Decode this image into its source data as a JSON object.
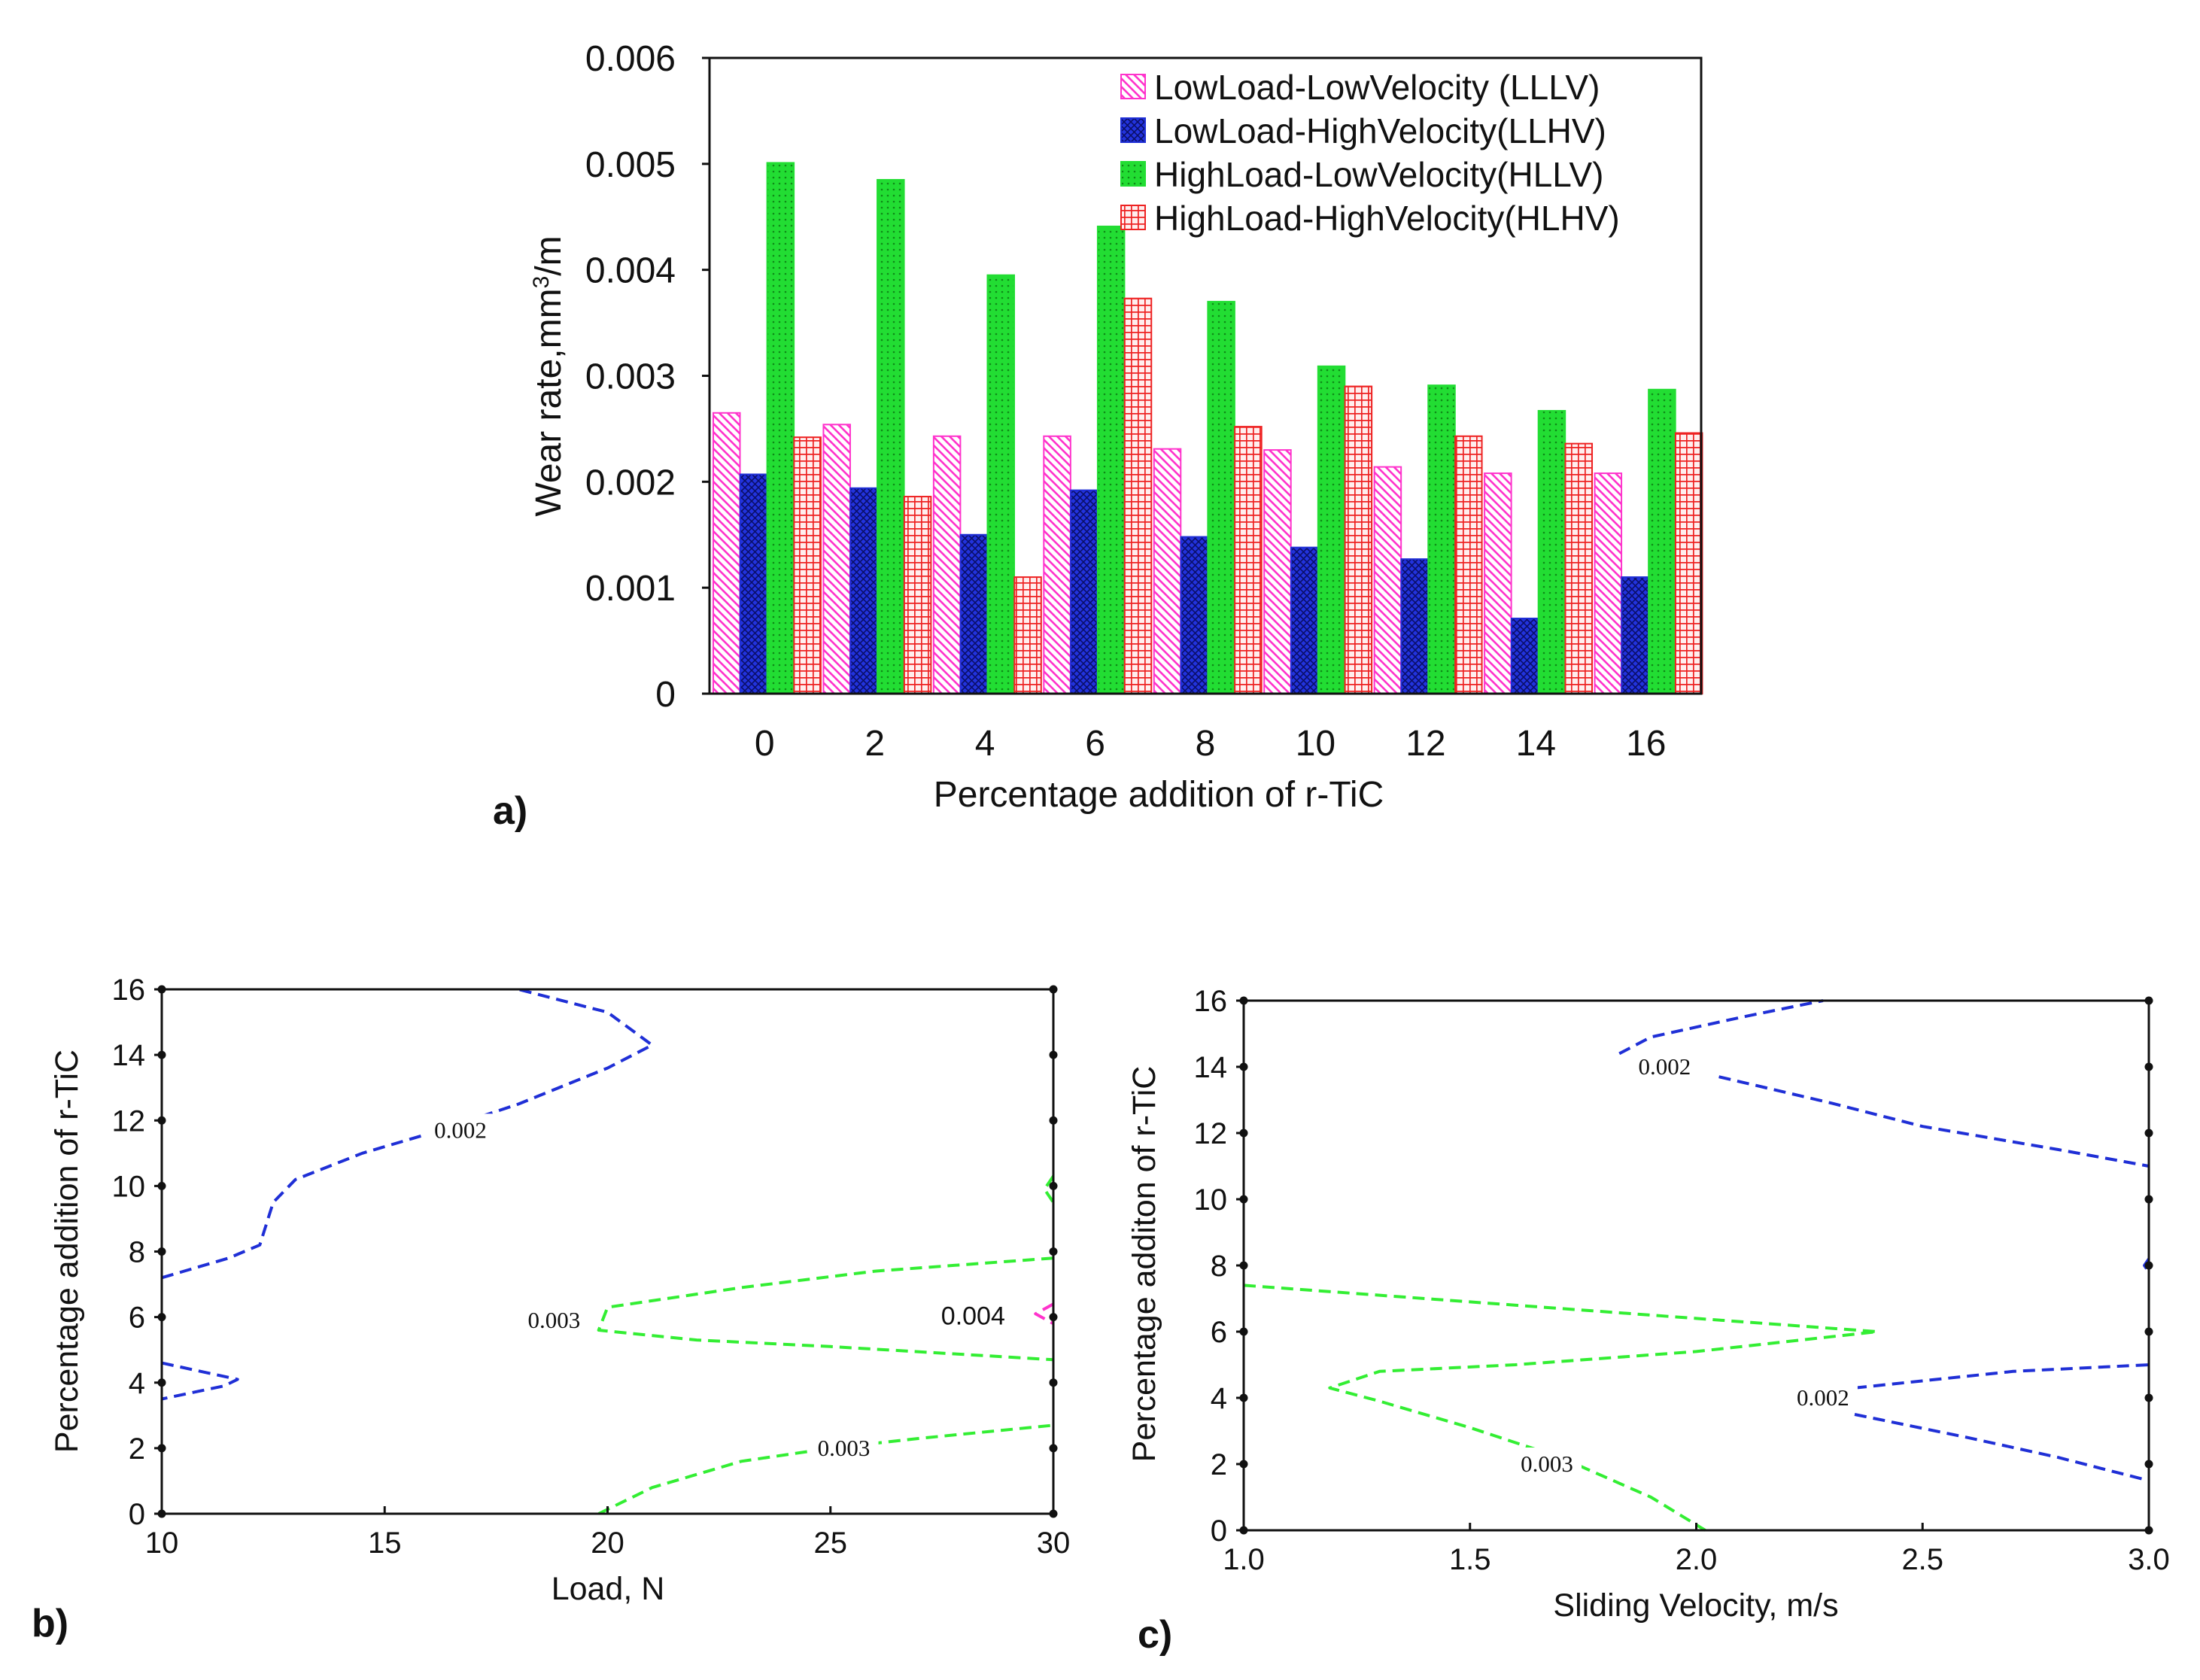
{
  "colors": {
    "lllv": "#ff33cc",
    "llhv": "#1f2fd6",
    "hllv": "#22dd33",
    "hlhv": "#ee2222",
    "contour_blue": "#1f2fd6",
    "contour_green": "#33ee33",
    "contour_magenta": "#ff33cc",
    "axis": "#111111"
  },
  "chart_data": [
    {
      "id": "a",
      "panel_label": "a)",
      "type": "bar",
      "xlabel": "Percentage addition of r-TiC",
      "ylabel_main": "Wear rate,mm",
      "ylabel_sup": "3",
      "ylabel_tail": "/m",
      "categories": [
        "0",
        "2",
        "4",
        "6",
        "8",
        "10",
        "12",
        "14",
        "16"
      ],
      "ylim": [
        0,
        0.006
      ],
      "yticks": [
        "0",
        "0.001",
        "0.002",
        "0.003",
        "0.004",
        "0.005",
        "0.006"
      ],
      "legend_position": "top-right",
      "series": [
        {
          "name": "LowLoad-LowVelocity (LLLV)",
          "color_key": "lllv",
          "pattern": "diag",
          "values": [
            0.00265,
            0.00254,
            0.00243,
            0.00243,
            0.00231,
            0.0023,
            0.00214,
            0.00208,
            0.00208
          ]
        },
        {
          "name": "LowLoad-HighVelocity(LLHV)",
          "color_key": "llhv",
          "pattern": "cross",
          "values": [
            0.00207,
            0.00194,
            0.0015,
            0.00192,
            0.00148,
            0.00138,
            0.00127,
            0.00071,
            0.0011
          ]
        },
        {
          "name": "HighLoad-LowVelocity(HLLV)",
          "color_key": "hllv",
          "pattern": "dots",
          "values": [
            0.00501,
            0.00485,
            0.00395,
            0.00441,
            0.0037,
            0.00309,
            0.00291,
            0.00267,
            0.00287
          ]
        },
        {
          "name": "HighLoad-HighVelocity(HLHV)",
          "color_key": "hlhv",
          "pattern": "grid",
          "values": [
            0.00242,
            0.00186,
            0.0011,
            0.00373,
            0.00252,
            0.0029,
            0.00243,
            0.00236,
            0.00246
          ]
        }
      ]
    },
    {
      "id": "b",
      "panel_label": "b)",
      "type": "contour",
      "xlabel": "Load, N",
      "ylabel": "Percentage addition of r-TiC",
      "xlim": [
        10,
        30
      ],
      "ylim": [
        0,
        16
      ],
      "xticks": [
        "10",
        "15",
        "20",
        "25",
        "30"
      ],
      "yticks": [
        "0",
        "2",
        "4",
        "6",
        "8",
        "10",
        "12",
        "14",
        "16"
      ],
      "contours": [
        {
          "level": "0.002",
          "color_key": "contour_blue",
          "label_at": [
            16.7,
            11.7
          ],
          "points": [
            [
              10,
              7.2
            ],
            [
              11.5,
              7.8
            ],
            [
              12.2,
              8.2
            ],
            [
              12.5,
              9.5
            ],
            [
              13,
              10.2
            ],
            [
              14.5,
              11.0
            ],
            [
              16,
              11.6
            ],
            [
              18,
              12.5
            ],
            [
              20,
              13.6
            ],
            [
              21,
              14.3
            ],
            [
              20,
              15.3
            ],
            [
              18,
              16
            ]
          ]
        },
        {
          "level": "0.002",
          "color_key": "contour_blue",
          "points": [
            [
              10,
              4.6
            ],
            [
              11.7,
              4.1
            ],
            [
              11.4,
              3.9
            ],
            [
              10,
              3.5
            ]
          ]
        },
        {
          "level": "0.003",
          "color_key": "contour_green",
          "label_at": [
            18.8,
            5.9
          ],
          "points": [
            [
              30,
              7.8
            ],
            [
              26,
              7.4
            ],
            [
              23,
              6.9
            ],
            [
              20,
              6.3
            ],
            [
              19.8,
              5.6
            ],
            [
              22,
              5.3
            ],
            [
              25,
              5.1
            ],
            [
              30,
              4.7
            ]
          ]
        },
        {
          "level": "0.003",
          "color_key": "contour_green",
          "label_at": [
            25.3,
            2.0
          ],
          "points": [
            [
              19.8,
              0
            ],
            [
              21,
              0.8
            ],
            [
              23,
              1.6
            ],
            [
              25,
              2.0
            ],
            [
              27,
              2.3
            ],
            [
              30,
              2.7
            ]
          ]
        },
        {
          "level": "",
          "color_key": "contour_green",
          "points": [
            [
              30,
              10.3
            ],
            [
              29.8,
              9.9
            ],
            [
              30,
              9.5
            ]
          ]
        },
        {
          "level": "0.004",
          "color_key": "contour_magenta",
          "label_at": [
            28.2,
            6.0
          ],
          "points": [
            [
              30,
              6.4
            ],
            [
              29.6,
              6.1
            ],
            [
              30,
              5.8
            ]
          ]
        }
      ]
    },
    {
      "id": "c",
      "panel_label": "c)",
      "type": "contour",
      "xlabel": "Sliding Velocity, m/s",
      "ylabel": "Percentage additon of r-TiC",
      "xlim": [
        1.0,
        3.0
      ],
      "ylim": [
        0,
        16
      ],
      "xticks": [
        "1.0",
        "1.5",
        "2.0",
        "2.5",
        "3.0"
      ],
      "yticks": [
        "0",
        "2",
        "4",
        "6",
        "8",
        "10",
        "12",
        "14",
        "16"
      ],
      "contours": [
        {
          "level": "0.002",
          "color_key": "contour_blue",
          "label_at": [
            1.93,
            14.0
          ],
          "points": [
            [
              1.83,
              14.4
            ],
            [
              1.9,
              14.9
            ],
            [
              2.1,
              15.5
            ],
            [
              2.28,
              16
            ]
          ]
        },
        {
          "level": "0.002",
          "color_key": "contour_blue",
          "points": [
            [
              2.05,
              13.7
            ],
            [
              2.3,
              12.9
            ],
            [
              2.5,
              12.2
            ],
            [
              2.8,
              11.5
            ],
            [
              3.0,
              11.0
            ]
          ]
        },
        {
          "level": "0.002",
          "color_key": "contour_blue",
          "label_at": [
            2.28,
            4.0
          ],
          "points": [
            [
              2.35,
              4.3
            ],
            [
              2.7,
              4.8
            ],
            [
              3.0,
              5.0
            ]
          ]
        },
        {
          "level": "0.002",
          "color_key": "contour_blue",
          "points": [
            [
              2.35,
              3.5
            ],
            [
              2.6,
              2.8
            ],
            [
              2.8,
              2.2
            ],
            [
              3.0,
              1.5
            ]
          ]
        },
        {
          "level": "",
          "color_key": "contour_blue",
          "points": [
            [
              3.0,
              8.2
            ],
            [
              2.99,
              8.0
            ],
            [
              3.0,
              7.8
            ]
          ]
        },
        {
          "level": "0.003",
          "color_key": "contour_green",
          "label_at": [
            1.67,
            2.0
          ],
          "points": [
            [
              1.0,
              7.4
            ],
            [
              1.2,
              7.2
            ],
            [
              1.5,
              6.9
            ],
            [
              2.0,
              6.4
            ],
            [
              2.4,
              6.0
            ],
            [
              2.0,
              5.4
            ],
            [
              1.6,
              5.0
            ],
            [
              1.3,
              4.8
            ],
            [
              1.19,
              4.3
            ],
            [
              1.3,
              3.9
            ],
            [
              1.5,
              3.1
            ],
            [
              1.7,
              2.2
            ],
            [
              1.9,
              1.0
            ],
            [
              2.02,
              0
            ]
          ]
        }
      ]
    }
  ]
}
